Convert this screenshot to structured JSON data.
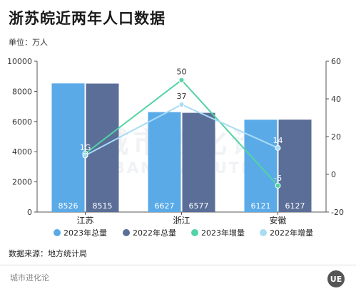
{
  "title": "浙苏皖近两年人口数据",
  "unit_label": "单位：万人",
  "source": "数据来源：地方统计局",
  "brand": "城市进化论",
  "logo_text": "UE",
  "watermark": "城市进化论 URBAN EVOLUTION",
  "chart_data": {
    "type": "bar",
    "categories": [
      "江苏",
      "浙江",
      "安徽"
    ],
    "series": [
      {
        "name": "2023年总量",
        "kind": "bar",
        "axis": "left",
        "color": "#5aaae8",
        "values": [
          8526,
          6627,
          6121
        ],
        "labels": [
          "8526",
          "6627",
          "6121"
        ]
      },
      {
        "name": "2022年总量",
        "kind": "bar",
        "axis": "left",
        "color": "#5a6e98",
        "values": [
          8515,
          6577,
          6127
        ],
        "labels": [
          "8515",
          "6577",
          "6127"
        ]
      },
      {
        "name": "2023年增量",
        "kind": "line",
        "axis": "right",
        "color": "#52d4a4",
        "values": [
          11,
          50,
          -6
        ],
        "labels": [
          "",
          "50",
          "-6"
        ]
      },
      {
        "name": "2022年增量",
        "kind": "line",
        "axis": "right",
        "color": "#a8dcf4",
        "values": [
          10,
          37,
          14
        ],
        "labels": [
          "",
          "37",
          "14"
        ]
      }
    ],
    "left_axis": {
      "min": 0,
      "max": 10000,
      "ticks": [
        "0",
        "2000",
        "4000",
        "6000",
        "8000",
        "10000"
      ]
    },
    "right_axis": {
      "min": -20,
      "max": 60,
      "ticks": [
        "-20",
        "0",
        "20",
        "40",
        "60"
      ]
    },
    "overlap_label": "1G",
    "legend_position": "bottom",
    "grid": false
  }
}
